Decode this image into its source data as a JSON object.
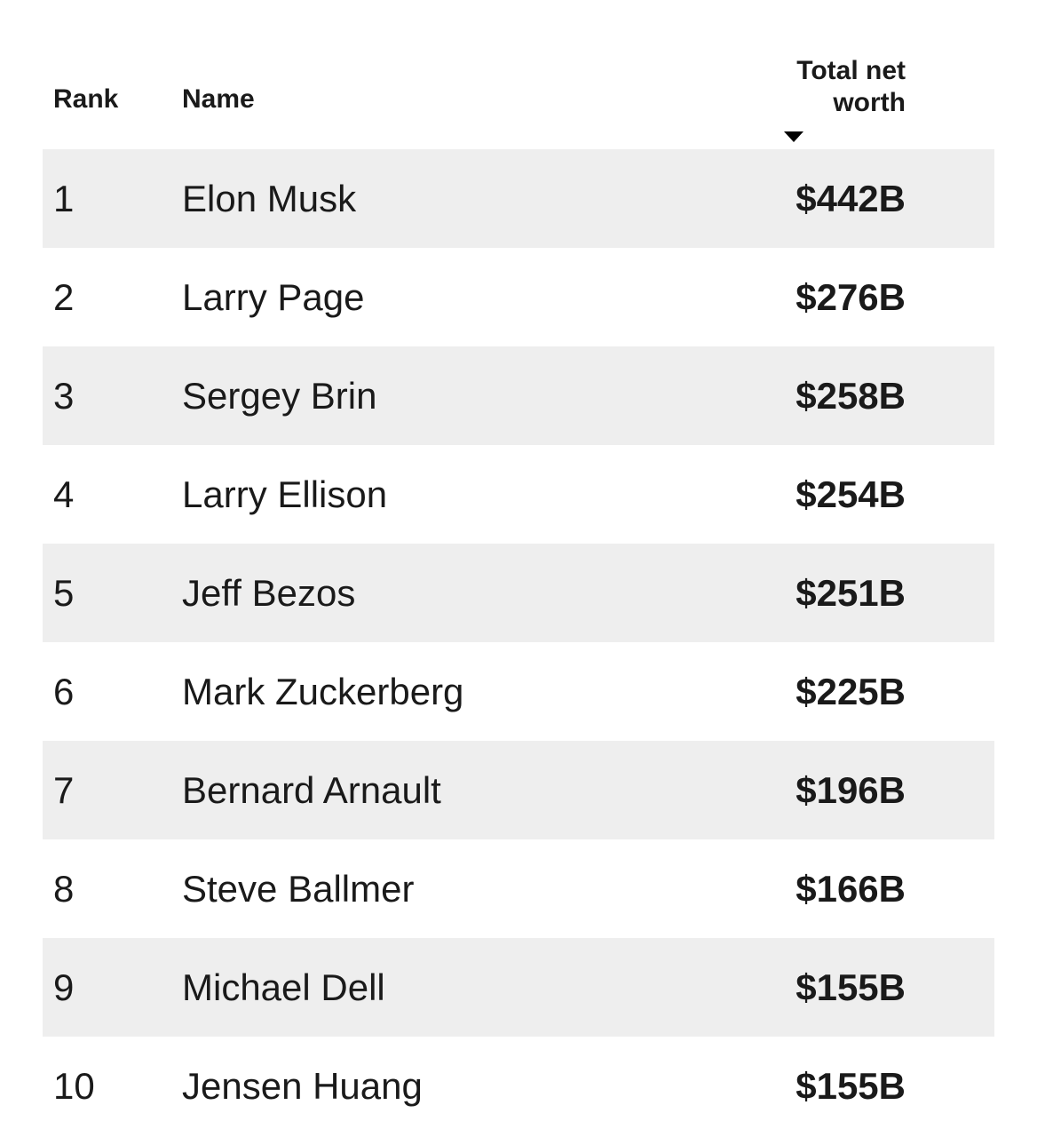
{
  "table": {
    "headers": {
      "rank": "Rank",
      "name": "Name",
      "worth_line1": "Total net",
      "worth_line2": "worth"
    },
    "sort": {
      "column": "Total net worth",
      "direction": "desc",
      "icon": "sort-descending-triangle"
    },
    "rows": [
      {
        "rank": "1",
        "name": "Elon Musk",
        "worth": "$442B"
      },
      {
        "rank": "2",
        "name": "Larry Page",
        "worth": "$276B"
      },
      {
        "rank": "3",
        "name": "Sergey Brin",
        "worth": "$258B"
      },
      {
        "rank": "4",
        "name": "Larry Ellison",
        "worth": "$254B"
      },
      {
        "rank": "5",
        "name": "Jeff Bezos",
        "worth": "$251B"
      },
      {
        "rank": "6",
        "name": "Mark Zuckerberg",
        "worth": "$225B"
      },
      {
        "rank": "7",
        "name": "Bernard Arnault",
        "worth": "$196B"
      },
      {
        "rank": "8",
        "name": "Steve Ballmer",
        "worth": "$166B"
      },
      {
        "rank": "9",
        "name": "Michael Dell",
        "worth": "$155B"
      },
      {
        "rank": "10",
        "name": "Jensen Huang",
        "worth": "$155B"
      }
    ]
  },
  "colors": {
    "stripe": "#eeeeee",
    "background": "#ffffff",
    "text": "#1a1a1a"
  },
  "chart_data": {
    "type": "table",
    "title": "",
    "columns": [
      "Rank",
      "Name",
      "Total net worth"
    ],
    "rows": [
      [
        1,
        "Elon Musk",
        "$442B"
      ],
      [
        2,
        "Larry Page",
        "$276B"
      ],
      [
        3,
        "Sergey Brin",
        "$258B"
      ],
      [
        4,
        "Larry Ellison",
        "$254B"
      ],
      [
        5,
        "Jeff Bezos",
        "$251B"
      ],
      [
        6,
        "Mark Zuckerberg",
        "$225B"
      ],
      [
        7,
        "Bernard Arnault",
        "$196B"
      ],
      [
        8,
        "Steve Ballmer",
        "$166B"
      ],
      [
        9,
        "Michael Dell",
        "$155B"
      ],
      [
        10,
        "Jensen Huang",
        "$155B"
      ]
    ],
    "net_worth_billions_usd": [
      442,
      276,
      258,
      254,
      251,
      225,
      196,
      166,
      155,
      155
    ],
    "sort": {
      "column": "Total net worth",
      "direction": "desc"
    },
    "layout": {
      "striped_rows": "odd",
      "stripe_color": "#eeeeee"
    }
  }
}
